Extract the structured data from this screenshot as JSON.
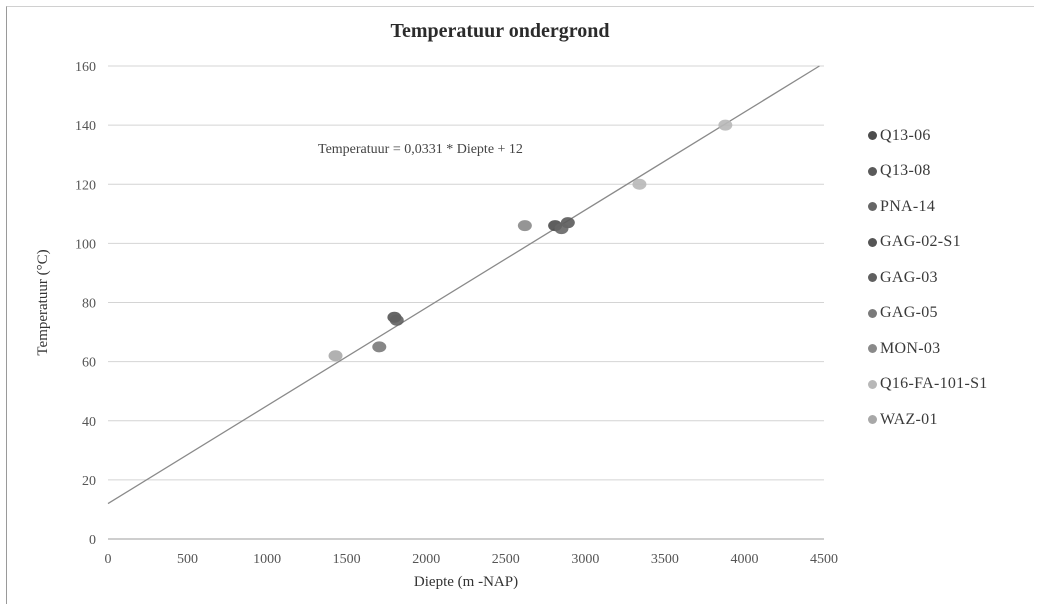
{
  "chart_data": {
    "type": "scatter",
    "title": "Temperatuur ondergrond",
    "xlabel": "Diepte (m -NAP)",
    "ylabel": "Temperatuur (°C)",
    "xlim": [
      0,
      4500
    ],
    "ylim": [
      0,
      160
    ],
    "xticks": [
      0,
      500,
      1000,
      1500,
      2000,
      2500,
      3000,
      3500,
      4000,
      4500
    ],
    "yticks": [
      0,
      20,
      40,
      60,
      80,
      100,
      120,
      140,
      160
    ],
    "grid": "horizontal",
    "legend_position": "right",
    "trendline": {
      "label": "Temperatuur = 0,0331 * Diepte + 12",
      "slope": 0.0331,
      "intercept": 12
    },
    "series": [
      {
        "name": "Q13-06",
        "color": "#4d4d4d",
        "points": [
          {
            "x": 2810,
            "y": 106
          }
        ]
      },
      {
        "name": "Q13-08",
        "color": "#5a5a5a",
        "points": [
          {
            "x": 2890,
            "y": 107
          }
        ]
      },
      {
        "name": "PNA-14",
        "color": "#666666",
        "points": [
          {
            "x": 2850,
            "y": 105
          }
        ]
      },
      {
        "name": "GAG-02-S1",
        "color": "#555555",
        "points": [
          {
            "x": 1800,
            "y": 75
          }
        ]
      },
      {
        "name": "GAG-03",
        "color": "#606060",
        "points": [
          {
            "x": 1815,
            "y": 74
          }
        ]
      },
      {
        "name": "GAG-05",
        "color": "#7a7a7a",
        "points": [
          {
            "x": 1705,
            "y": 65
          }
        ]
      },
      {
        "name": "MON-03",
        "color": "#8a8a8a",
        "points": [
          {
            "x": 2620,
            "y": 106
          }
        ]
      },
      {
        "name": "Q16-FA-101-S1",
        "color": "#b8b8b8",
        "points": [
          {
            "x": 3340,
            "y": 120
          },
          {
            "x": 3880,
            "y": 140
          }
        ]
      },
      {
        "name": "WAZ-01",
        "color": "#a8a8a8",
        "points": [
          {
            "x": 1430,
            "y": 62
          }
        ]
      }
    ]
  }
}
